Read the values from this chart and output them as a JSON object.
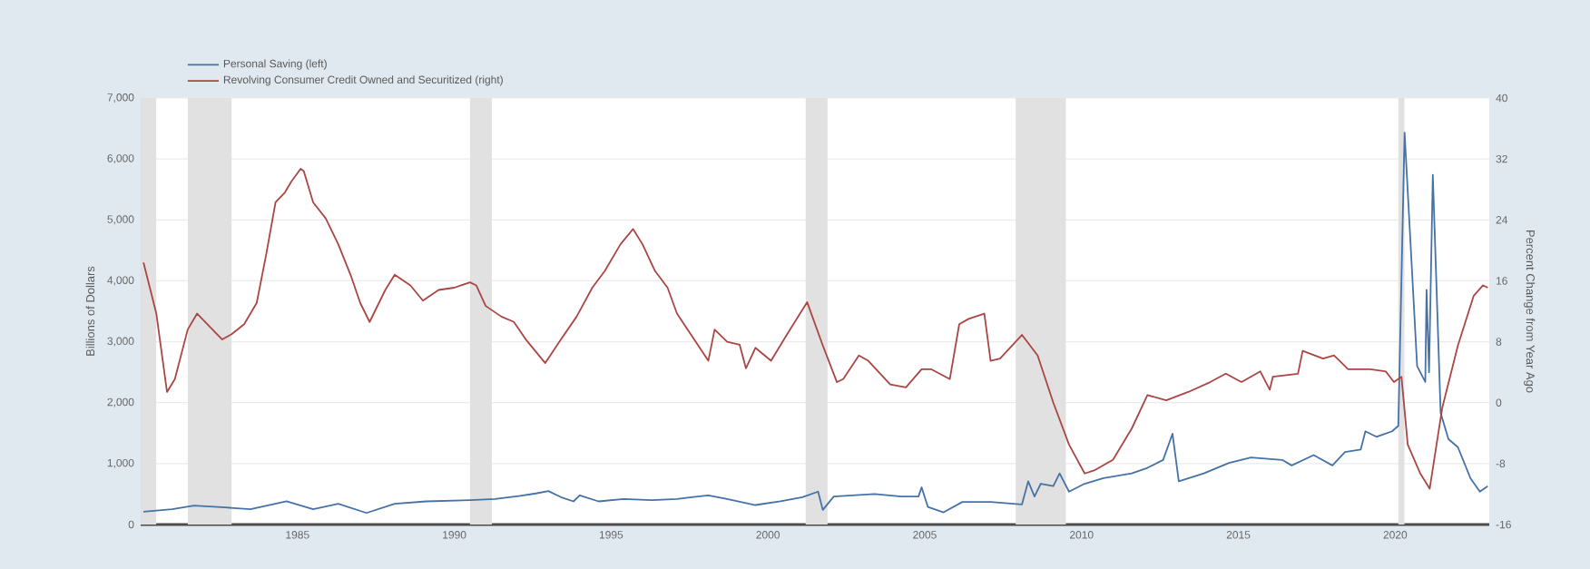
{
  "chart_data": {
    "type": "line",
    "ylabel": "Billions of Dollars",
    "y2label": "Percent Change from Year Ago",
    "xlim": [
      1980,
      2023
    ],
    "xticks": [
      1985,
      1990,
      1995,
      2000,
      2005,
      2010,
      2015,
      2020
    ],
    "ylim": [
      0,
      7000
    ],
    "yticks": [
      0,
      {
        "value": 1000,
        "label": "1,000"
      },
      {
        "value": 2000,
        "label": "2,000"
      },
      {
        "value": 3000,
        "label": "3,000"
      },
      {
        "value": 4000,
        "label": "4,000"
      },
      {
        "value": 5000,
        "label": "5,000"
      },
      {
        "value": 6000,
        "label": "6,000"
      },
      {
        "value": 7000,
        "label": "7,000"
      }
    ],
    "y2lim": [
      -16,
      40
    ],
    "y2ticks": [
      -16,
      -8,
      0,
      8,
      16,
      24,
      32,
      40
    ],
    "grid": "y",
    "legend": "top left",
    "bands": [
      {
        "axis": "x",
        "from": 1980.0,
        "to": 1980.5,
        "color": "#e1e1e1"
      },
      {
        "axis": "x",
        "from": 1981.5,
        "to": 1982.9,
        "color": "#e1e1e1"
      },
      {
        "axis": "x",
        "from": 1990.5,
        "to": 1991.2,
        "color": "#e1e1e1"
      },
      {
        "axis": "x",
        "from": 2001.2,
        "to": 2001.9,
        "color": "#e1e1e1"
      },
      {
        "axis": "x",
        "from": 2007.9,
        "to": 2009.5,
        "color": "#e1e1e1"
      },
      {
        "axis": "x",
        "from": 2020.1,
        "to": 2020.3,
        "color": "#e1e1e1"
      }
    ],
    "series": [
      {
        "name": "Personal Saving (left)",
        "color": "#4572a7",
        "x": [
          1980.09,
          1981.0,
          1981.7,
          1982.7,
          1983.5,
          1984.65,
          1985.5,
          1986.3,
          1987.2,
          1988.1,
          1989.1,
          1990.5,
          1991.3,
          1992.1,
          1992.6,
          1993.0,
          1993.4,
          1993.8,
          1994.0,
          1994.6,
          1995.4,
          1996.3,
          1997.1,
          1998.1,
          1998.7,
          1999.6,
          2000.4,
          2001.1,
          2001.6,
          2001.75,
          2002.1,
          2003.4,
          2004.25,
          2004.8,
          2004.9,
          2005.1,
          2005.6,
          2006.2,
          2007.1,
          2008.1,
          2008.3,
          2008.5,
          2008.7,
          2009.1,
          2009.3,
          2009.6,
          2010.1,
          2010.7,
          2011.6,
          2012.1,
          2012.6,
          2012.9,
          2013.1,
          2013.9,
          2014.7,
          2015.4,
          2016.4,
          2016.7,
          2017.4,
          2018.0,
          2018.4,
          2018.9,
          2019.05,
          2019.4,
          2019.9,
          2020.1,
          2020.3,
          2020.7,
          2020.96,
          2021.0,
          2021.08,
          2021.2,
          2021.45,
          2021.7,
          2022.0,
          2022.4,
          2022.7,
          2022.95
        ],
        "values": [
          210,
          250,
          310,
          280,
          250,
          380,
          250,
          340,
          190,
          340,
          380,
          400,
          420,
          470,
          510,
          550,
          450,
          380,
          480,
          380,
          420,
          400,
          420,
          480,
          420,
          320,
          380,
          450,
          540,
          240,
          460,
          500,
          460,
          460,
          610,
          290,
          200,
          370,
          370,
          330,
          710,
          460,
          670,
          630,
          840,
          540,
          670,
          760,
          840,
          930,
          1060,
          1490,
          710,
          840,
          1010,
          1100,
          1060,
          970,
          1140,
          970,
          1190,
          1230,
          1530,
          1440,
          1530,
          1620,
          6430,
          2600,
          2340,
          3850,
          2500,
          5740,
          1830,
          1400,
          1270,
          760,
          540,
          630
        ]
      },
      {
        "name": "Revolving Consumer Credit Owned and Securitized (right)",
        "color": "#aa4643",
        "axis": "y2",
        "x": [
          1980.09,
          1980.5,
          1980.84,
          1981.09,
          1981.5,
          1981.8,
          1982.2,
          1982.6,
          1982.9,
          1983.3,
          1983.7,
          1984.0,
          1984.3,
          1984.6,
          1984.8,
          1985.1,
          1985.2,
          1985.5,
          1985.9,
          1986.3,
          1986.7,
          1987.0,
          1987.3,
          1987.8,
          1988.1,
          1988.6,
          1989.0,
          1989.5,
          1990.0,
          1990.5,
          1990.7,
          1991.0,
          1991.5,
          1991.9,
          1992.3,
          1992.9,
          1993.4,
          1993.9,
          1994.4,
          1994.8,
          1995.3,
          1995.7,
          1996.0,
          1996.4,
          1996.8,
          1997.1,
          1997.6,
          1998.1,
          1998.3,
          1998.7,
          1999.1,
          1999.3,
          1999.6,
          2000.1,
          2000.6,
          2001.25,
          2001.75,
          2002.2,
          2002.4,
          2002.9,
          2003.2,
          2003.9,
          2004.4,
          2004.9,
          2005.2,
          2005.8,
          2006.1,
          2006.4,
          2006.9,
          2007.1,
          2007.4,
          2008.1,
          2008.6,
          2009.1,
          2009.6,
          2010.1,
          2010.4,
          2011.0,
          2011.6,
          2012.1,
          2012.7,
          2013.4,
          2014.1,
          2014.6,
          2015.1,
          2015.7,
          2016.0,
          2016.1,
          2016.9,
          2017.05,
          2017.7,
          2018.05,
          2018.5,
          2019.2,
          2019.7,
          2019.96,
          2020.2,
          2020.4,
          2020.8,
          2021.1,
          2021.5,
          2022.0,
          2022.5,
          2022.8,
          2022.95
        ],
        "values": [
          18.4,
          11.7,
          1.4,
          3.1,
          9.6,
          11.7,
          10.0,
          8.3,
          9.0,
          10.3,
          13.1,
          19.4,
          26.3,
          27.6,
          29.0,
          30.7,
          30.4,
          26.3,
          24.2,
          20.8,
          16.7,
          13.1,
          10.6,
          14.8,
          16.8,
          15.4,
          13.4,
          14.8,
          15.1,
          15.8,
          15.4,
          12.7,
          11.3,
          10.6,
          8.2,
          5.2,
          8.3,
          11.3,
          15.1,
          17.3,
          20.8,
          22.8,
          20.8,
          17.3,
          15.1,
          11.7,
          8.6,
          5.5,
          9.6,
          8.0,
          7.6,
          4.5,
          7.2,
          5.5,
          8.9,
          13.2,
          7.5,
          2.7,
          3.1,
          6.2,
          5.5,
          2.4,
          2.0,
          4.4,
          4.4,
          3.1,
          10.3,
          11.0,
          11.7,
          5.5,
          5.8,
          8.9,
          6.2,
          0.0,
          -5.5,
          -9.3,
          -8.9,
          -7.5,
          -3.4,
          1.0,
          0.3,
          1.4,
          2.7,
          3.8,
          2.7,
          4.1,
          1.7,
          3.4,
          3.8,
          6.8,
          5.8,
          6.2,
          4.4,
          4.4,
          4.1,
          2.7,
          3.4,
          -5.5,
          -9.3,
          -11.3,
          -0.7,
          7.5,
          14.0,
          15.4,
          15.1
        ]
      }
    ]
  }
}
